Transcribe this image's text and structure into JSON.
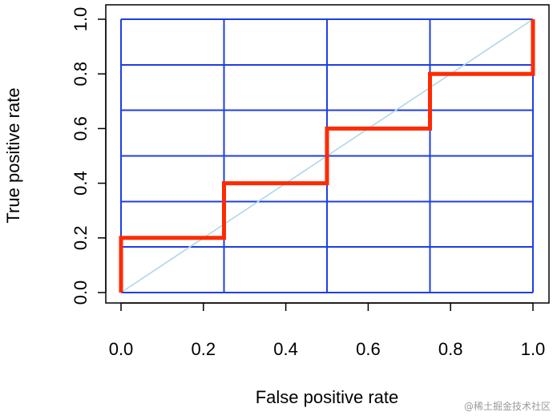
{
  "chart_data": {
    "type": "line",
    "xlabel": "False positive rate",
    "ylabel": "True positive rate",
    "xlim": [
      0,
      1
    ],
    "ylim": [
      0,
      1
    ],
    "x_ticks": [
      "0.0",
      "0.2",
      "0.4",
      "0.6",
      "0.8",
      "1.0"
    ],
    "y_ticks": [
      "0.0",
      "0.2",
      "0.4",
      "0.6",
      "0.8",
      "1.0"
    ],
    "grid": true,
    "grid_x": [
      0,
      0.25,
      0.5,
      0.75,
      1.0
    ],
    "grid_y": [
      0,
      0.167,
      0.333,
      0.5,
      0.667,
      0.833,
      1.0
    ],
    "series": [
      {
        "color": "#ff2a00",
        "style": "step",
        "x": [
          0,
          0,
          0.25,
          0.25,
          0.5,
          0.5,
          0.75,
          0.75,
          1.0,
          1.0
        ],
        "y": [
          0,
          0.2,
          0.2,
          0.4,
          0.4,
          0.6,
          0.6,
          0.8,
          0.8,
          1.0
        ]
      },
      {
        "color": "#add8e6",
        "style": "diagonal",
        "x": [
          0,
          1
        ],
        "y": [
          0,
          1
        ]
      }
    ],
    "grid_color": "#1f3fe0"
  },
  "watermark": "@稀土掘金技术社区"
}
